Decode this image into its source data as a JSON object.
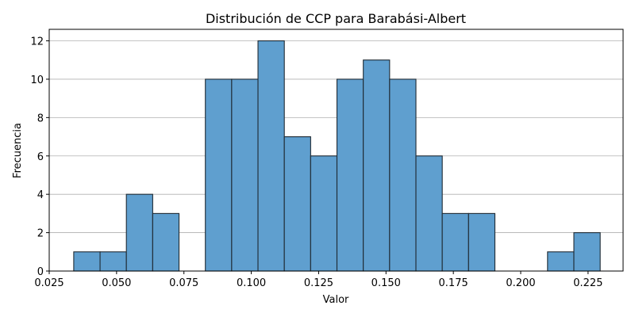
{
  "chart_data": {
    "type": "bar",
    "title": "Distribución de CCP para Barabási-Albert",
    "xlabel": "Valor",
    "ylabel": "Frecuencia",
    "xlim": [
      0.025,
      0.238
    ],
    "ylim": [
      0,
      12.6
    ],
    "bin_width": 0.00977,
    "bin_start": 0.0341,
    "values": [
      1,
      1,
      4,
      3,
      0,
      10,
      10,
      12,
      7,
      6,
      10,
      11,
      10,
      6,
      3,
      3,
      0,
      0,
      1,
      2
    ],
    "x_ticks": [
      0.025,
      0.05,
      0.075,
      0.1,
      0.125,
      0.15,
      0.175,
      0.2,
      0.225
    ],
    "x_tick_labels": [
      "0.025",
      "0.050",
      "0.075",
      "0.100",
      "0.125",
      "0.150",
      "0.175",
      "0.200",
      "0.225"
    ],
    "y_ticks": [
      0,
      2,
      4,
      6,
      8,
      10,
      12
    ],
    "y_tick_labels": [
      "0",
      "2",
      "4",
      "6",
      "8",
      "10",
      "12"
    ],
    "grid": "y-axis",
    "bar_color": "#5f9fcf",
    "edge_color": "#1f2a33"
  }
}
